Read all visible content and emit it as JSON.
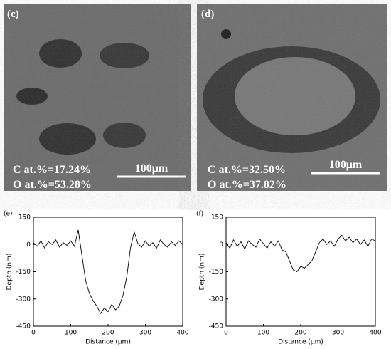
{
  "images": [
    {
      "label": "(c)",
      "carbon": "C at.%=17.24%",
      "oxygen": "O at.%=53.28%",
      "scale": "100μm"
    },
    {
      "label": "(d)",
      "carbon": "C at.%=32.50%",
      "oxygen": "O at.%=37.82%",
      "scale": "100μm"
    }
  ],
  "chart_data": [
    {
      "type": "line",
      "panel": "(e)",
      "x_label": "Distance (μm)",
      "y_label": "Depth (nm)",
      "color": "#000000",
      "x": [
        0,
        10,
        20,
        30,
        40,
        50,
        60,
        70,
        80,
        90,
        100,
        110,
        120,
        130,
        140,
        150,
        160,
        170,
        180,
        190,
        200,
        210,
        220,
        230,
        240,
        250,
        260,
        270,
        280,
        290,
        300,
        310,
        320,
        330,
        340,
        350,
        360,
        370,
        380,
        390,
        400
      ],
      "values": [
        10,
        -10,
        20,
        -20,
        15,
        0,
        25,
        -15,
        10,
        -5,
        20,
        -10,
        80,
        -60,
        -200,
        -270,
        -310,
        -340,
        -380,
        -350,
        -370,
        -330,
        -360,
        -340,
        -280,
        -180,
        -20,
        70,
        5,
        -15,
        20,
        -10,
        10,
        -20,
        25,
        0,
        -15,
        15,
        -5,
        20,
        0
      ],
      "xlim": [
        0,
        400
      ],
      "xticks": [
        0,
        100,
        200,
        300,
        400
      ],
      "ylim": [
        -450,
        150
      ],
      "yticks": [
        150,
        0,
        -150,
        -300,
        -450
      ]
    },
    {
      "type": "line",
      "panel": "(f)",
      "x_label": "Distance (μm)",
      "y_label": "Depth (nm)",
      "color": "#000000",
      "x": [
        0,
        10,
        20,
        30,
        40,
        50,
        60,
        70,
        80,
        90,
        100,
        110,
        120,
        130,
        140,
        150,
        160,
        170,
        180,
        190,
        200,
        210,
        220,
        230,
        240,
        250,
        260,
        270,
        280,
        290,
        300,
        310,
        320,
        330,
        340,
        350,
        360,
        370,
        380,
        390,
        400
      ],
      "values": [
        10,
        -20,
        25,
        -10,
        15,
        -25,
        20,
        0,
        -15,
        30,
        5,
        -20,
        15,
        -10,
        20,
        -30,
        -40,
        -90,
        -140,
        -150,
        -120,
        -130,
        -110,
        -90,
        -40,
        10,
        30,
        0,
        20,
        -10,
        30,
        50,
        20,
        40,
        10,
        30,
        0,
        25,
        -10,
        30,
        20
      ],
      "xlim": [
        0,
        400
      ],
      "xticks": [
        0,
        100,
        200,
        300,
        400
      ],
      "ylim": [
        -450,
        150
      ],
      "yticks": [
        150,
        0,
        -150,
        -300,
        -450
      ]
    }
  ]
}
